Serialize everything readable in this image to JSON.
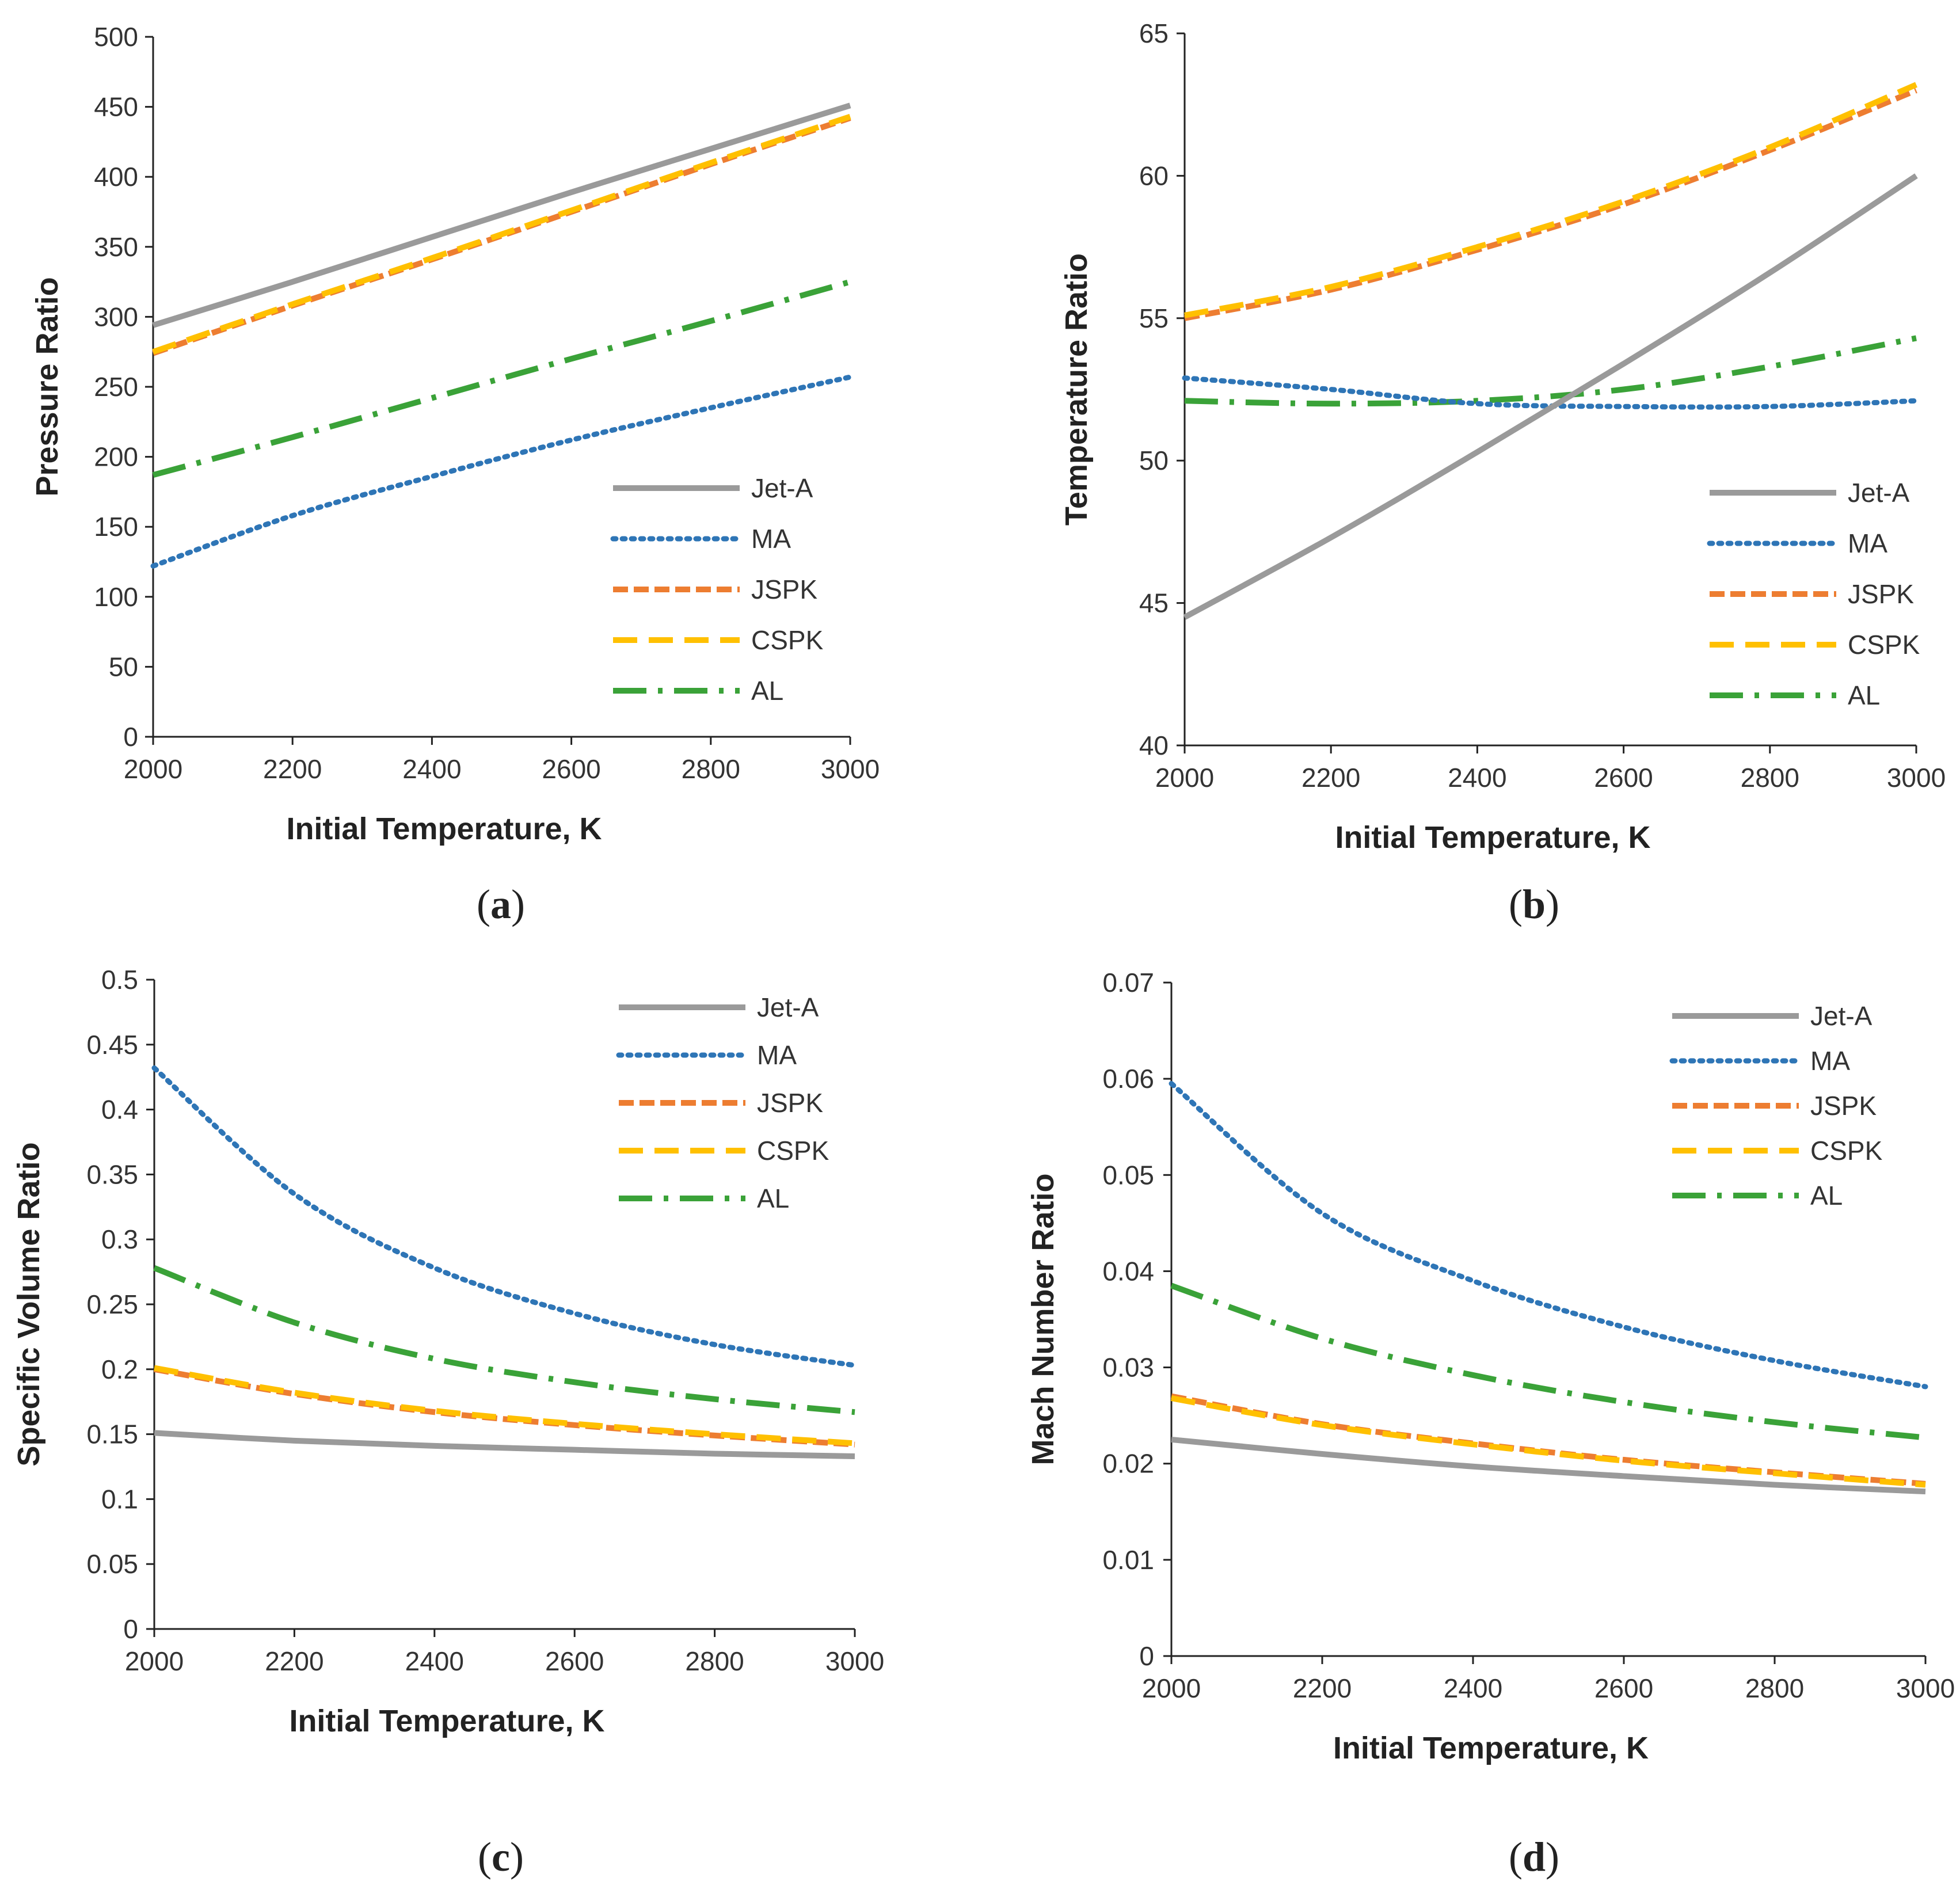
{
  "colors": {
    "Jet-A": "#9a9a9a",
    "MA": "#2e75b6",
    "JSPK": "#ed7d31",
    "CSPK": "#ffc000",
    "AL": "#3aa238",
    "axis": "#222222"
  },
  "chart_data": [
    {
      "type": "line",
      "panel": "a",
      "xlabel": "Initial Temperature, K",
      "ylabel": "Pressure Ratio",
      "xlim": [
        2000,
        3000
      ],
      "ylim": [
        0,
        500
      ],
      "xticks": [
        2000,
        2200,
        2400,
        2600,
        2800,
        3000
      ],
      "yticks": [
        0,
        50,
        100,
        150,
        200,
        250,
        300,
        350,
        400,
        450,
        500
      ],
      "legend_position": "bottom-right",
      "x": [
        2000,
        2200,
        2400,
        2600,
        2800,
        3000
      ],
      "series": [
        {
          "name": "Jet-A",
          "values": [
            294,
            325,
            357,
            389,
            420,
            451
          ]
        },
        {
          "name": "MA",
          "values": [
            122,
            158,
            186,
            212,
            235,
            257
          ]
        },
        {
          "name": "JSPK",
          "values": [
            274,
            308,
            341,
            375,
            409,
            442
          ]
        },
        {
          "name": "CSPK",
          "values": [
            275,
            309,
            342,
            376,
            410,
            443
          ]
        },
        {
          "name": "AL",
          "values": [
            187,
            214,
            242,
            270,
            297,
            325
          ]
        }
      ]
    },
    {
      "type": "line",
      "panel": "b",
      "xlabel": "Initial Temperature, K",
      "ylabel": "Temperature Ratio",
      "xlim": [
        2000,
        3000
      ],
      "ylim": [
        40,
        65
      ],
      "xticks": [
        2000,
        2200,
        2400,
        2600,
        2800,
        3000
      ],
      "yticks": [
        40,
        45,
        50,
        55,
        60,
        65
      ],
      "legend_position": "bottom-right",
      "x": [
        2000,
        2200,
        2400,
        2600,
        2800,
        3000
      ],
      "series": [
        {
          "name": "Jet-A",
          "values": [
            44.5,
            47.3,
            50.3,
            53.4,
            56.6,
            60.0
          ]
        },
        {
          "name": "MA",
          "values": [
            52.9,
            52.5,
            52.0,
            51.9,
            51.9,
            52.1
          ]
        },
        {
          "name": "JSPK",
          "values": [
            55.0,
            56.0,
            57.4,
            59.0,
            60.9,
            63.0
          ]
        },
        {
          "name": "CSPK",
          "values": [
            55.1,
            56.1,
            57.5,
            59.1,
            61.0,
            63.2
          ]
        },
        {
          "name": "AL",
          "values": [
            52.1,
            52.0,
            52.1,
            52.5,
            53.3,
            54.3
          ]
        }
      ]
    },
    {
      "type": "line",
      "panel": "c",
      "xlabel": "Initial Temperature, K",
      "ylabel": "Specific Volume Ratio",
      "xlim": [
        2000,
        3000
      ],
      "ylim": [
        0,
        0.5
      ],
      "xticks": [
        2000,
        2200,
        2400,
        2600,
        2800,
        3000
      ],
      "yticks": [
        0,
        0.05,
        0.1,
        0.15,
        0.2,
        0.25,
        0.3,
        0.35,
        0.4,
        0.45,
        0.5
      ],
      "legend_position": "top-right",
      "x": [
        2000,
        2200,
        2400,
        2600,
        2800,
        3000
      ],
      "series": [
        {
          "name": "Jet-A",
          "values": [
            0.151,
            0.145,
            0.141,
            0.138,
            0.135,
            0.133
          ]
        },
        {
          "name": "MA",
          "values": [
            0.432,
            0.335,
            0.278,
            0.243,
            0.219,
            0.203
          ]
        },
        {
          "name": "JSPK",
          "values": [
            0.2,
            0.181,
            0.167,
            0.157,
            0.149,
            0.142
          ]
        },
        {
          "name": "CSPK",
          "values": [
            0.201,
            0.182,
            0.168,
            0.158,
            0.15,
            0.143
          ]
        },
        {
          "name": "AL",
          "values": [
            0.278,
            0.236,
            0.208,
            0.19,
            0.177,
            0.167
          ]
        }
      ]
    },
    {
      "type": "line",
      "panel": "d",
      "xlabel": "Initial Temperature, K",
      "ylabel": "Mach Number  Ratio",
      "xlim": [
        2000,
        3000
      ],
      "ylim": [
        0,
        0.07
      ],
      "xticks": [
        2000,
        2200,
        2400,
        2600,
        2800,
        3000
      ],
      "yticks": [
        0,
        0.01,
        0.02,
        0.03,
        0.04,
        0.05,
        0.06,
        0.07
      ],
      "legend_position": "top-right",
      "x": [
        2000,
        2200,
        2400,
        2600,
        2800,
        3000
      ],
      "series": [
        {
          "name": "Jet-A",
          "values": [
            0.0225,
            0.021,
            0.0197,
            0.0187,
            0.0178,
            0.0171
          ]
        },
        {
          "name": "MA",
          "values": [
            0.0595,
            0.046,
            0.039,
            0.0342,
            0.0307,
            0.028
          ]
        },
        {
          "name": "JSPK",
          "values": [
            0.027,
            0.0241,
            0.0221,
            0.0204,
            0.0191,
            0.0179
          ]
        },
        {
          "name": "CSPK",
          "values": [
            0.0268,
            0.024,
            0.022,
            0.0203,
            0.019,
            0.0178
          ]
        },
        {
          "name": "AL",
          "values": [
            0.0385,
            0.033,
            0.0292,
            0.0264,
            0.0243,
            0.0227
          ]
        }
      ]
    }
  ]
}
